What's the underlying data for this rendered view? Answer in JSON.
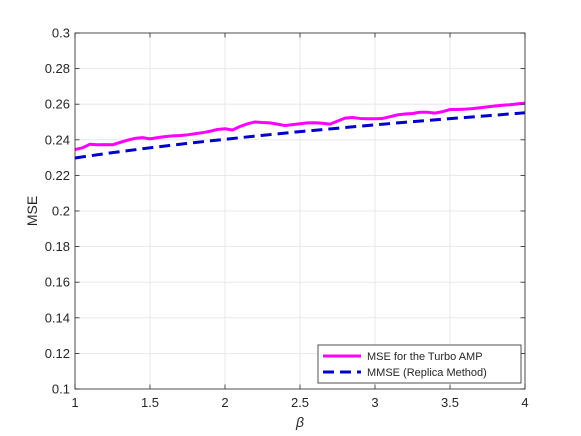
{
  "chart_data": {
    "type": "line",
    "xlabel": "β",
    "ylabel": "MSE",
    "xlim": [
      1,
      4
    ],
    "ylim": [
      0.1,
      0.3
    ],
    "xticks": [
      1,
      1.5,
      2,
      2.5,
      3,
      3.5,
      4
    ],
    "yticks": [
      0.1,
      0.12,
      0.14,
      0.16,
      0.18,
      0.2,
      0.22,
      0.24,
      0.26,
      0.28,
      0.3
    ],
    "xtick_labels": [
      "1",
      "1.5",
      "2",
      "2.5",
      "3",
      "3.5",
      "4"
    ],
    "ytick_labels": [
      "0.1",
      "0.12",
      "0.14",
      "0.16",
      "0.18",
      "0.2",
      "0.22",
      "0.24",
      "0.26",
      "0.28",
      "0.3"
    ],
    "grid": true,
    "legend_position": "bottom-right",
    "series": [
      {
        "name": "MSE for the Turbo AMP",
        "color": "#ff00ff",
        "style": "solid",
        "x": [
          1.0,
          1.05,
          1.1,
          1.15,
          1.2,
          1.25,
          1.3,
          1.35,
          1.4,
          1.45,
          1.5,
          1.55,
          1.6,
          1.65,
          1.7,
          1.75,
          1.8,
          1.85,
          1.9,
          1.95,
          2.0,
          2.05,
          2.1,
          2.15,
          2.2,
          2.25,
          2.3,
          2.35,
          2.4,
          2.45,
          2.5,
          2.55,
          2.6,
          2.65,
          2.7,
          2.75,
          2.8,
          2.85,
          2.9,
          2.95,
          3.0,
          3.05,
          3.1,
          3.15,
          3.2,
          3.25,
          3.3,
          3.35,
          3.4,
          3.45,
          3.5,
          3.55,
          3.6,
          3.65,
          3.7,
          3.75,
          3.8,
          3.85,
          3.9,
          3.95,
          4.0
        ],
        "y": [
          0.2345,
          0.2355,
          0.2375,
          0.2372,
          0.2373,
          0.2372,
          0.2385,
          0.2398,
          0.2408,
          0.2412,
          0.2405,
          0.2412,
          0.2418,
          0.2422,
          0.2424,
          0.2428,
          0.2434,
          0.244,
          0.2448,
          0.2458,
          0.2462,
          0.2455,
          0.2475,
          0.249,
          0.25,
          0.2497,
          0.2495,
          0.2488,
          0.248,
          0.2485,
          0.249,
          0.2495,
          0.2496,
          0.2493,
          0.2488,
          0.2505,
          0.2522,
          0.2525,
          0.252,
          0.2518,
          0.2518,
          0.252,
          0.253,
          0.254,
          0.2545,
          0.2548,
          0.2555,
          0.2555,
          0.255,
          0.2558,
          0.257,
          0.257,
          0.2572,
          0.2575,
          0.258,
          0.2585,
          0.259,
          0.2594,
          0.2597,
          0.2602,
          0.2606
        ]
      },
      {
        "name": "MMSE (Replica Method)",
        "color": "#0000cc",
        "style": "dashed",
        "x": [
          1.0,
          1.25,
          1.5,
          1.75,
          2.0,
          2.25,
          2.5,
          2.75,
          3.0,
          3.25,
          3.5,
          3.75,
          4.0
        ],
        "y": [
          0.2298,
          0.2328,
          0.2355,
          0.238,
          0.2403,
          0.2425,
          0.2446,
          0.2465,
          0.2484,
          0.2502,
          0.2519,
          0.2535,
          0.2552
        ]
      }
    ]
  }
}
